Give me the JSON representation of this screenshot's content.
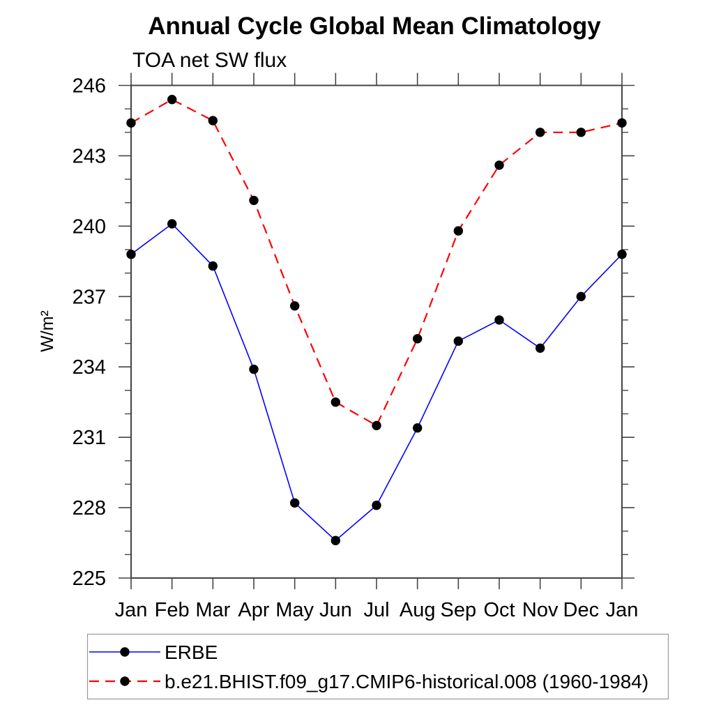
{
  "page": {
    "background": "#ffffff"
  },
  "chart_data": {
    "type": "line",
    "title": "Annual Cycle Global Mean Climatology",
    "subtitle": "TOA net SW flux",
    "ylabel": "W/m²",
    "xlabel": "",
    "categories": [
      "Jan",
      "Feb",
      "Mar",
      "Apr",
      "May",
      "Jun",
      "Jul",
      "Aug",
      "Sep",
      "Oct",
      "Nov",
      "Dec",
      "Jan"
    ],
    "series": [
      {
        "name": "ERBE",
        "color": "#0000ff",
        "line_style": "solid",
        "marker": "filled-circle",
        "marker_color": "#000000",
        "values": [
          238.8,
          240.1,
          238.3,
          233.9,
          228.2,
          226.6,
          228.1,
          231.4,
          235.1,
          236.0,
          234.8,
          237.0,
          238.8
        ]
      },
      {
        "name": "b.e21.BHIST.f09_g17.CMIP6-historical.008 (1960-1984)",
        "color": "#ff0000",
        "line_style": "dashed",
        "marker": "filled-circle",
        "marker_color": "#000000",
        "values": [
          244.4,
          245.4,
          244.5,
          241.1,
          236.6,
          232.5,
          231.5,
          235.2,
          239.8,
          242.6,
          244.0,
          244.0,
          244.4
        ]
      }
    ],
    "ylim": [
      225,
      246
    ],
    "yticks": [
      225,
      228,
      231,
      234,
      237,
      240,
      243,
      246
    ],
    "y_minor_step": 1,
    "grid": false,
    "legend_position": "bottom-left",
    "axis_color": "#444444",
    "text_color": "#000000"
  }
}
